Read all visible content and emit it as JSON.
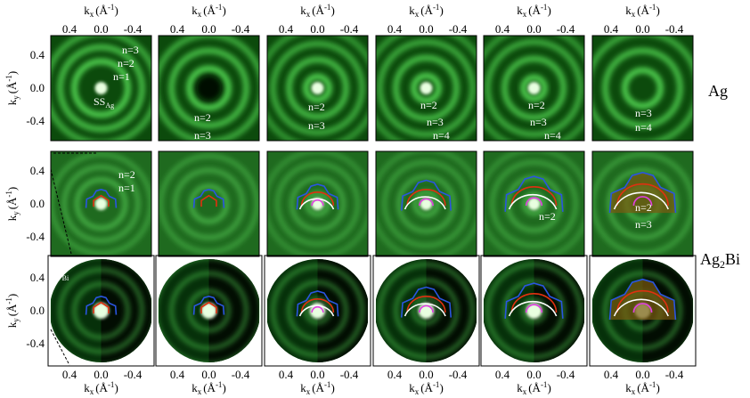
{
  "axes": {
    "kx": {
      "symbol": "k",
      "sub": "x",
      "open": "(Å",
      "sup": "-1",
      "close": ")"
    },
    "ky": {
      "symbol": "k",
      "sub": "y",
      "open": "(Å",
      "sup": "-1",
      "close": ")"
    },
    "ticks": [
      "0.4",
      "0.0",
      "-0.4"
    ]
  },
  "row_labels": [
    {
      "main": "Ag"
    },
    {
      "main": "Ag",
      "sub": "2",
      "rest": "Bi"
    }
  ],
  "rows": [
    {
      "panels": [
        {
          "annotations": [
            {
              "text": "n=3"
            },
            {
              "text": "n=2"
            },
            {
              "text": "n=1"
            },
            {
              "text": "SS",
              "sub": "Ag"
            }
          ]
        },
        {
          "annotations": [
            {
              "text": "n=2"
            },
            {
              "text": "n=3"
            }
          ]
        },
        {
          "annotations": [
            {
              "text": "n=2"
            },
            {
              "text": "n=3"
            }
          ]
        },
        {
          "annotations": [
            {
              "text": "n=2"
            },
            {
              "text": "n=3"
            },
            {
              "text": "n=4"
            }
          ]
        },
        {
          "annotations": [
            {
              "text": "n=2"
            },
            {
              "text": "n=3"
            },
            {
              "text": "n=4"
            }
          ]
        },
        {
          "annotations": [
            {
              "text": "n=3"
            },
            {
              "text": "n=4"
            }
          ]
        }
      ]
    },
    {
      "panels": [
        {
          "annotations": [
            {
              "text": "n=2"
            },
            {
              "text": "n=1"
            }
          ]
        },
        {
          "annotations": []
        },
        {
          "annotations": []
        },
        {
          "annotations": []
        },
        {
          "annotations": [
            {
              "text": "n=2"
            }
          ]
        },
        {
          "annotations": [
            {
              "text": "n=2"
            },
            {
              "text": "n=3"
            }
          ]
        }
      ]
    },
    {
      "panels": [
        {
          "annotations": [
            {
              "text": "K",
              "sub": "Bi"
            },
            {
              "text": "M",
              "sub": "Bi"
            }
          ]
        },
        {
          "annotations": []
        },
        {
          "annotations": []
        },
        {
          "annotations": []
        },
        {
          "annotations": []
        },
        {
          "annotations": []
        }
      ]
    }
  ]
}
